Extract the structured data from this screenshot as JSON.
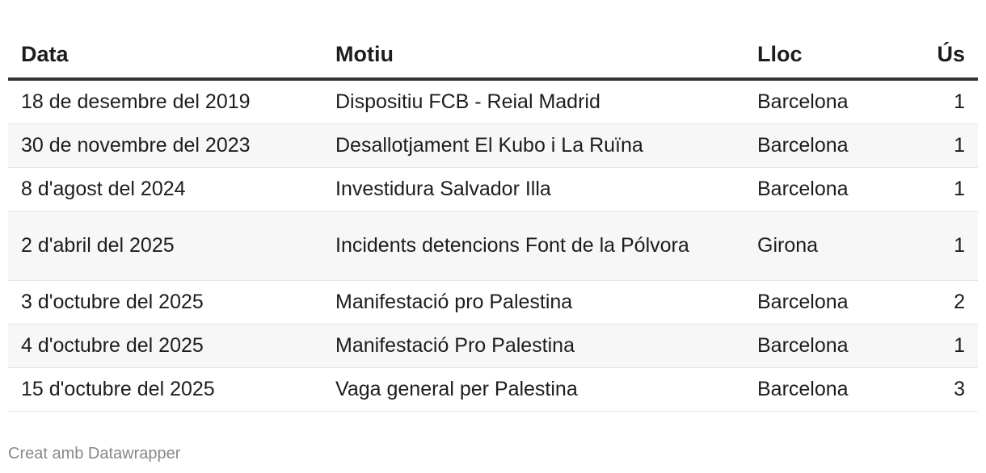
{
  "table": {
    "headers": {
      "data": "Data",
      "motiu": "Motiu",
      "lloc": "Lloc",
      "us": "Ús"
    },
    "rows": [
      {
        "data": "18 de desembre del 2019",
        "motiu": "Dispositiu FCB - Reial Madrid",
        "lloc": "Barcelona",
        "us": "1"
      },
      {
        "data": "30 de novembre del 2023",
        "motiu": "Desallotjament El Kubo i La Ruïna",
        "lloc": "Barcelona",
        "us": "1"
      },
      {
        "data": "8 d'agost del 2024",
        "motiu": "Investidura Salvador Illa",
        "lloc": "Barcelona",
        "us": "1"
      },
      {
        "data": "2 d'abril del 2025",
        "motiu": "Incidents detencions Font de la Pólvora",
        "lloc": "Girona",
        "us": "1"
      },
      {
        "data": "3 d'octubre del 2025",
        "motiu": "Manifestació pro Palestina",
        "lloc": "Barcelona",
        "us": "2"
      },
      {
        "data": "4 d'octubre del 2025",
        "motiu": "Manifestació Pro Palestina",
        "lloc": "Barcelona",
        "us": "1"
      },
      {
        "data": "15 d'octubre del 2025",
        "motiu": "Vaga general per Palestina",
        "lloc": "Barcelona",
        "us": "3"
      }
    ]
  },
  "footer": {
    "credit": "Creat amb Datawrapper"
  }
}
